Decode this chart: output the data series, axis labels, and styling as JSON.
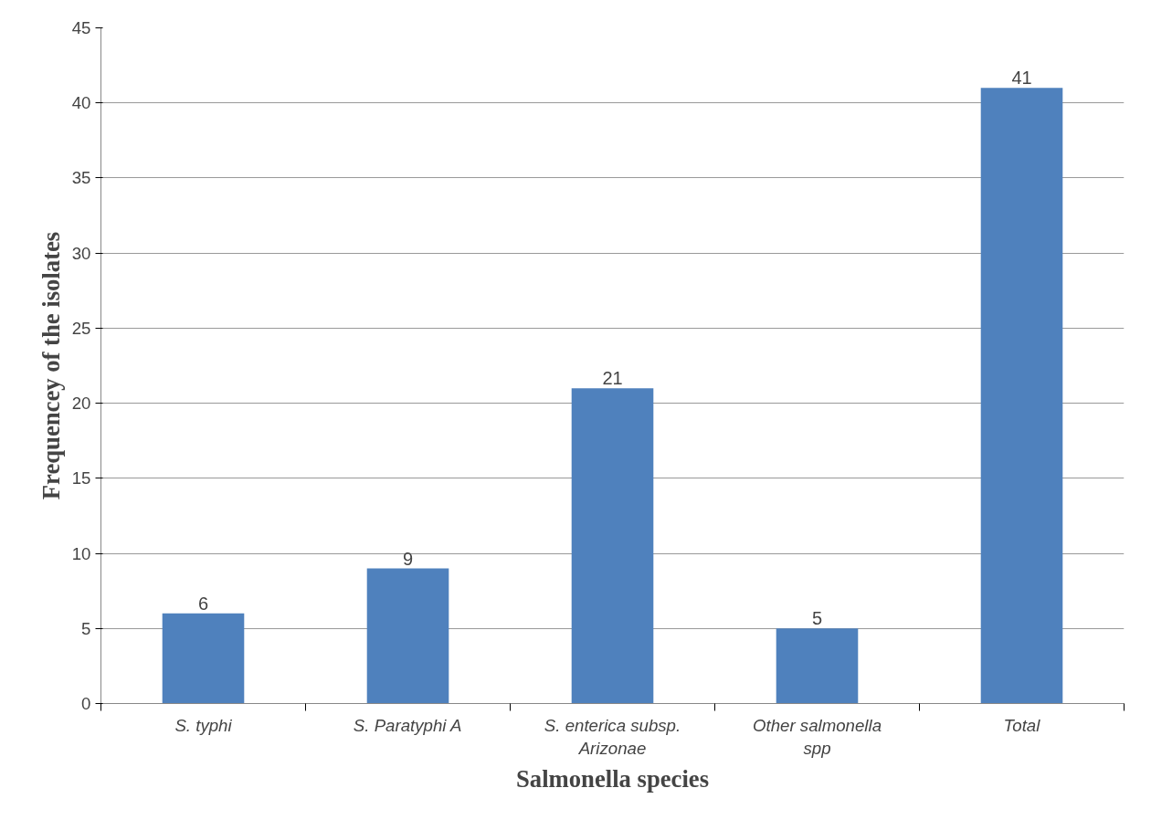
{
  "chart_data": {
    "type": "bar",
    "xlabel": "Salmonella species",
    "ylabel": "Frequencey of the isolates",
    "categories": [
      "S. typhi",
      "S. Paratyphi A",
      "S. enterica subsp. Arizonae",
      "Other salmonella spp",
      "Total"
    ],
    "values": [
      6,
      9,
      21,
      5,
      41
    ],
    "color": "#4f81bd",
    "ylim": [
      0,
      45
    ],
    "yticks": [
      0,
      5,
      10,
      15,
      20,
      25,
      30,
      35,
      40,
      45
    ],
    "grid": "y",
    "data_labels": true
  }
}
